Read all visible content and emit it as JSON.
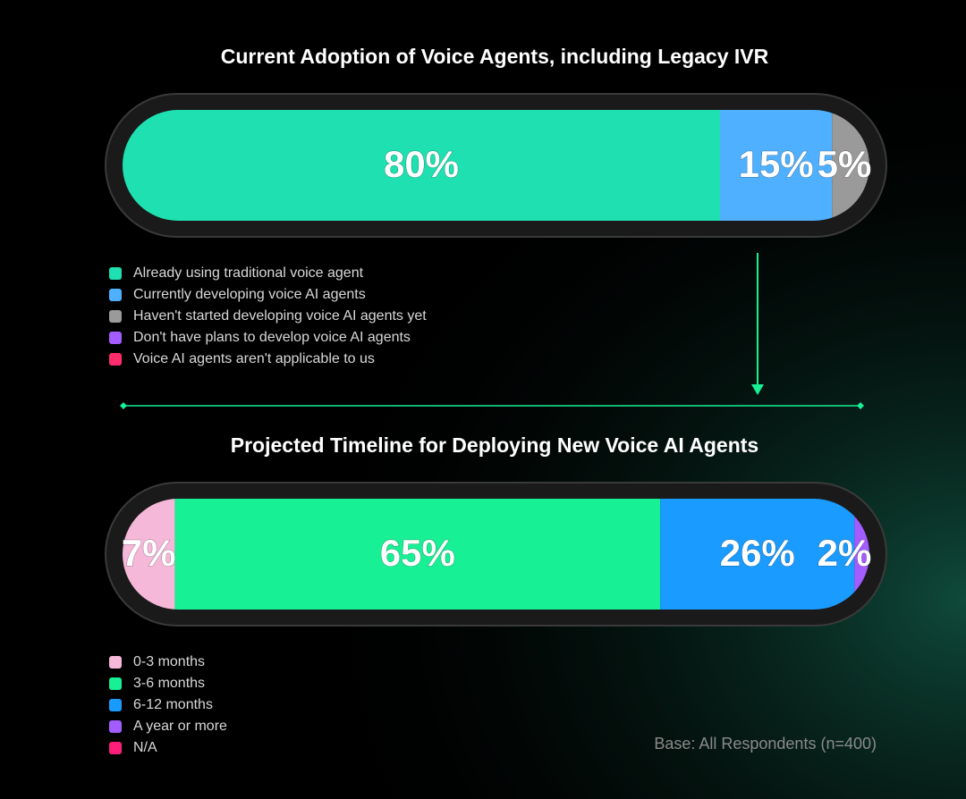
{
  "chart_data": [
    {
      "type": "stacked-bar",
      "title": "Current Adoption of Voice Agents, including Legacy IVR",
      "xlim": [
        0,
        100
      ],
      "series": [
        {
          "name": "Already using traditional voice agent",
          "color": "#1fe0b0",
          "values": [
            80
          ],
          "value_labels": [
            "80%"
          ]
        },
        {
          "name": "Currently developing voice AI agents",
          "color": "#4fb0ff",
          "values": [
            15
          ],
          "value_labels": [
            "15%"
          ]
        },
        {
          "name": "Haven't started developing voice AI agents yet",
          "color": "#9a9a9a",
          "values": [
            5
          ],
          "value_labels": [
            "5%"
          ]
        },
        {
          "name": "Don't have plans to develop voice AI agents",
          "color": "#a35cff",
          "values": [
            null
          ]
        },
        {
          "name": "Voice AI agents aren't applicable to us",
          "color": "#ff2d6b",
          "values": [
            null
          ]
        }
      ]
    },
    {
      "type": "stacked-bar",
      "title": "Projected Timeline for Deploying New Voice AI Agents",
      "xlim": [
        0,
        100
      ],
      "series": [
        {
          "name": "0-3 months",
          "color": "#f5b8d8",
          "values": [
            7
          ],
          "value_labels": [
            "7%"
          ]
        },
        {
          "name": "3-6 months",
          "color": "#17f095",
          "values": [
            65
          ],
          "value_labels": [
            "65%"
          ]
        },
        {
          "name": "6-12 months",
          "color": "#1a9bff",
          "values": [
            26
          ],
          "value_labels": [
            "26%"
          ]
        },
        {
          "name": "A year or more",
          "color": "#a35cff",
          "values": [
            2
          ],
          "value_labels": [
            "2%"
          ]
        },
        {
          "name": "N/A",
          "color": "#ff1f7a",
          "values": [
            null
          ]
        }
      ]
    }
  ],
  "footnote": "Base: All Respondents (n=400)"
}
